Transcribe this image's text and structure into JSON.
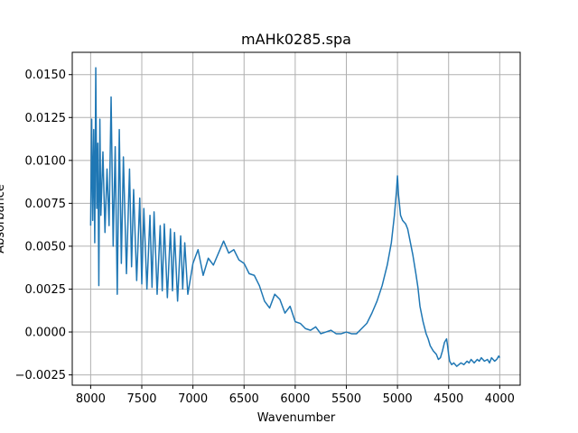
{
  "chart_data": {
    "type": "line",
    "title": "mAHk0285.spa",
    "xlabel": "Wavenumber",
    "ylabel": "Absorbance",
    "xlim": [
      8180,
      3800
    ],
    "ylim": [
      -0.0031,
      0.0163
    ],
    "x_inverted": true,
    "grid": true,
    "xticks": [
      8000,
      7500,
      7000,
      6500,
      6000,
      5500,
      5000,
      4500,
      4000
    ],
    "xtick_labels": [
      "8000",
      "7500",
      "7000",
      "6500",
      "6000",
      "5500",
      "5000",
      "4500",
      "4000"
    ],
    "yticks": [
      -0.0025,
      0.0,
      0.0025,
      0.005,
      0.0075,
      0.01,
      0.0125,
      0.015
    ],
    "ytick_labels": [
      "−0.0025",
      "0.0000",
      "0.0025",
      "0.0050",
      "0.0075",
      "0.0100",
      "0.0125",
      "0.0150"
    ],
    "series": [
      {
        "name": "",
        "color": "#1f77b4",
        "x": [
          8000,
          7990,
          7980,
          7970,
          7960,
          7950,
          7940,
          7930,
          7920,
          7910,
          7900,
          7880,
          7860,
          7840,
          7820,
          7800,
          7780,
          7760,
          7740,
          7720,
          7700,
          7680,
          7650,
          7620,
          7600,
          7580,
          7550,
          7520,
          7500,
          7480,
          7450,
          7420,
          7400,
          7380,
          7350,
          7320,
          7300,
          7280,
          7250,
          7220,
          7200,
          7180,
          7150,
          7120,
          7100,
          7080,
          7050,
          7000,
          6950,
          6900,
          6850,
          6800,
          6750,
          6700,
          6650,
          6600,
          6550,
          6500,
          6450,
          6400,
          6350,
          6300,
          6250,
          6200,
          6150,
          6100,
          6050,
          6000,
          5950,
          5900,
          5850,
          5800,
          5750,
          5700,
          5650,
          5600,
          5550,
          5500,
          5450,
          5400,
          5350,
          5300,
          5250,
          5200,
          5150,
          5100,
          5060,
          5030,
          5010,
          5000,
          4990,
          4970,
          4950,
          4920,
          4900,
          4880,
          4850,
          4820,
          4800,
          4780,
          4750,
          4720,
          4700,
          4680,
          4650,
          4620,
          4600,
          4580,
          4560,
          4540,
          4520,
          4510,
          4500,
          4490,
          4470,
          4450,
          4420,
          4400,
          4380,
          4350,
          4320,
          4300,
          4280,
          4250,
          4220,
          4200,
          4180,
          4150,
          4120,
          4100,
          4080,
          4050,
          4030,
          4010,
          4000
        ],
        "y": [
          0.0062,
          0.0124,
          0.0065,
          0.0118,
          0.0052,
          0.0154,
          0.0072,
          0.011,
          0.0027,
          0.0124,
          0.0068,
          0.0105,
          0.0058,
          0.0095,
          0.0062,
          0.0137,
          0.005,
          0.0108,
          0.0022,
          0.0118,
          0.004,
          0.0102,
          0.0034,
          0.0095,
          0.0038,
          0.0083,
          0.003,
          0.0078,
          0.0028,
          0.0072,
          0.0025,
          0.0068,
          0.0026,
          0.007,
          0.0022,
          0.0062,
          0.0024,
          0.0063,
          0.002,
          0.006,
          0.0024,
          0.0058,
          0.0018,
          0.0056,
          0.0025,
          0.0052,
          0.0022,
          0.004,
          0.0048,
          0.0033,
          0.0043,
          0.0039,
          0.0046,
          0.0053,
          0.0046,
          0.0048,
          0.0042,
          0.004,
          0.0034,
          0.0033,
          0.0027,
          0.0018,
          0.0014,
          0.0022,
          0.0019,
          0.0011,
          0.0015,
          0.0006,
          0.0005,
          0.0002,
          0.0001,
          0.0003,
          -0.0001,
          0.0,
          0.0001,
          -0.0001,
          -0.0001,
          0.0,
          -0.0001,
          -0.0001,
          0.0002,
          0.0005,
          0.0011,
          0.0018,
          0.0027,
          0.0039,
          0.0052,
          0.0068,
          0.0082,
          0.0091,
          0.008,
          0.0068,
          0.0065,
          0.0063,
          0.006,
          0.0054,
          0.0045,
          0.0034,
          0.0026,
          0.0015,
          0.0006,
          -0.0001,
          -0.0004,
          -0.0008,
          -0.0011,
          -0.0013,
          -0.0016,
          -0.0015,
          -0.0011,
          -0.0006,
          -0.0004,
          -0.0008,
          -0.0013,
          -0.0017,
          -0.0019,
          -0.0018,
          -0.002,
          -0.0019,
          -0.0018,
          -0.0019,
          -0.0017,
          -0.0018,
          -0.0016,
          -0.0018,
          -0.0016,
          -0.0017,
          -0.0015,
          -0.0017,
          -0.0016,
          -0.0018,
          -0.0015,
          -0.0017,
          -0.0016,
          -0.0014,
          -0.0015
        ]
      }
    ]
  }
}
